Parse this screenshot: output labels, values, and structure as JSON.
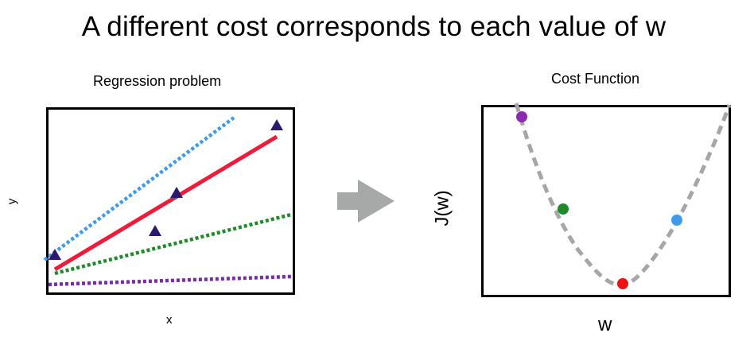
{
  "title": "A different cost corresponds to each value of w",
  "left_panel": {
    "heading": "Regression problem",
    "xlabel": "x",
    "ylabel": "y",
    "data_point_color": "#2b1a6e",
    "lines": [
      {
        "name": "blue-candidate-line",
        "color": "#3d9be9",
        "style": "dotted"
      },
      {
        "name": "red-best-fit-line",
        "color": "#ee1c3a",
        "style": "solid"
      },
      {
        "name": "green-candidate-line",
        "color": "#1f8a2a",
        "style": "dotted"
      },
      {
        "name": "purple-candidate-line",
        "color": "#7a2aa8",
        "style": "dotted"
      }
    ]
  },
  "arrow": {
    "icon": "right-arrow-icon",
    "color": "#a7a9a8"
  },
  "right_panel": {
    "heading": "Cost Function",
    "xlabel": "w",
    "ylabel": "J(w)",
    "curve_color": "#a6a6a6",
    "points": [
      {
        "name": "purple-cost-point",
        "color": "#8e2ab0"
      },
      {
        "name": "green-cost-point",
        "color": "#1f8a2a"
      },
      {
        "name": "red-cost-point",
        "color": "#ee1111"
      },
      {
        "name": "blue-cost-point",
        "color": "#3d9be9"
      }
    ]
  }
}
